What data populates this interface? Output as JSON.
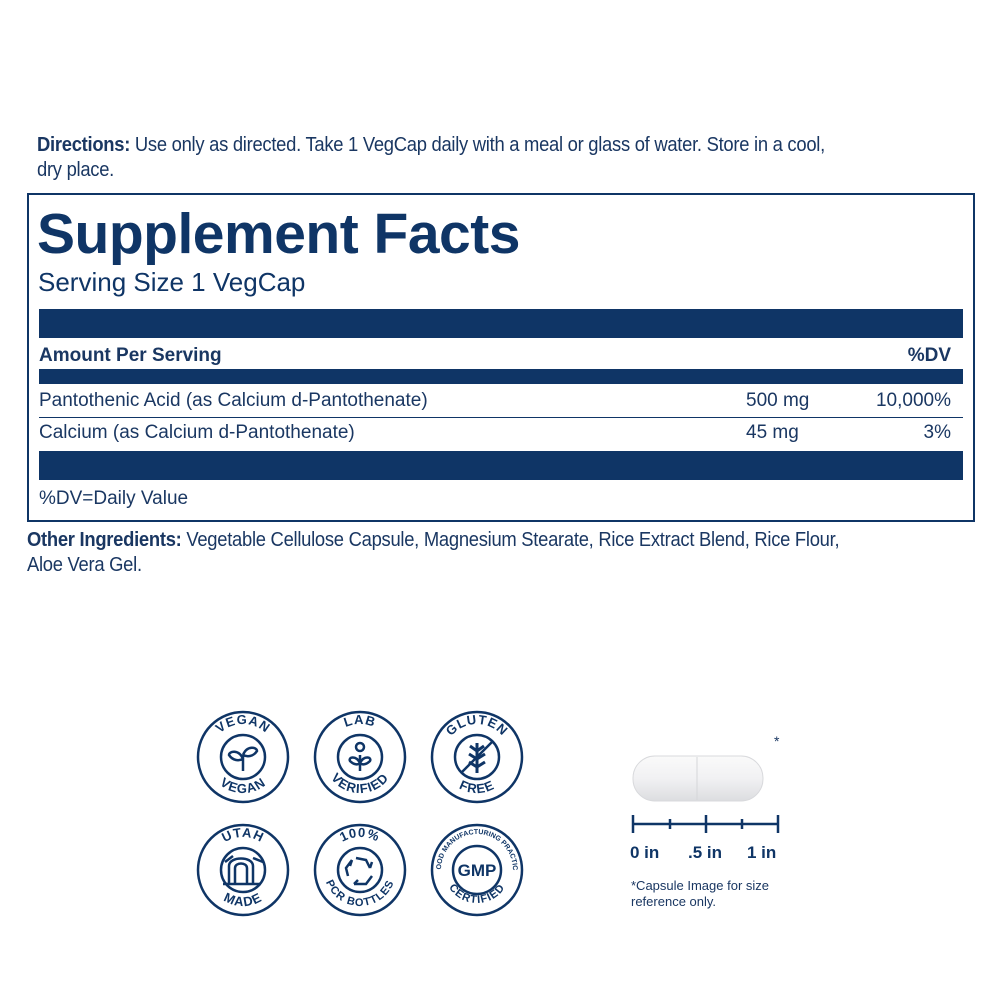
{
  "directions": {
    "label": "Directions:",
    "text": " Use only as directed. Take 1 VegCap daily with a meal or glass of water. Store in a cool,",
    "text2": "dry place."
  },
  "facts": {
    "title": "Supplement Facts",
    "serving": "Serving Size 1 VegCap",
    "amount_header": "Amount Per Serving",
    "dv_header": "%DV",
    "rows": [
      {
        "name": "Pantothenic Acid (as Calcium d-Pantothenate)",
        "amount": "500 mg",
        "dv": "10,000%"
      },
      {
        "name": "Calcium (as Calcium d-Pantothenate)",
        "amount": "45 mg",
        "dv": "3%"
      }
    ],
    "footnote": "%DV=Daily Value"
  },
  "other": {
    "label": "Other Ingredients:",
    "text": " Vegetable Cellulose Capsule, Magnesium Stearate, Rice Extract Blend, Rice Flour,",
    "text2": "Aloe Vera Gel."
  },
  "badges": [
    {
      "top": "VEGAN",
      "bottom": "VEGAN",
      "icon": "sprout-icon"
    },
    {
      "top": "LAB",
      "bottom": "VERIFIED",
      "icon": "person-plant-icon"
    },
    {
      "top": "GLUTEN",
      "bottom": "FREE",
      "icon": "no-wheat-icon"
    },
    {
      "top": "UTAH",
      "bottom": "MADE",
      "icon": "arch-icon"
    },
    {
      "top": "100%",
      "bottom": "PCR BOTTLES",
      "icon": "recycle-icon"
    },
    {
      "top": "GOOD MANUFACTURING PRACTICE",
      "bottom": "CERTIFIED",
      "center": "GMP",
      "icon": "gmp-icon"
    }
  ],
  "capsule": {
    "asterisk": "*",
    "ticks": [
      "0 in",
      ".5 in",
      "1 in"
    ],
    "note": "*Capsule Image for size",
    "note2": "reference only."
  },
  "colors": {
    "navy": "#0f3566",
    "text": "#1a3762"
  }
}
